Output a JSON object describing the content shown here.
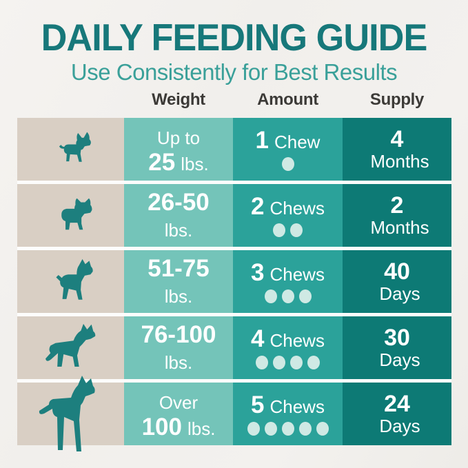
{
  "title": "DAILY FEEDING GUIDE",
  "subtitle": "Use Consistently for Best Results",
  "columns": {
    "weight": "Weight",
    "amount": "Amount",
    "supply": "Supply"
  },
  "rows": [
    {
      "dog": "chihuahua",
      "weight": {
        "l1_bold": "",
        "l1_plain": "Up to",
        "l2_bold": "25",
        "l2_plain": "lbs."
      },
      "amount": {
        "count": "1",
        "label": "Chew",
        "dots": 1
      },
      "supply": {
        "value": "4",
        "unit": "Months"
      }
    },
    {
      "dog": "french-bulldog",
      "weight": {
        "l1_bold": "26-50",
        "l1_plain": "",
        "l2_bold": "",
        "l2_plain": "lbs."
      },
      "amount": {
        "count": "2",
        "label": "Chews",
        "dots": 2
      },
      "supply": {
        "value": "2",
        "unit": "Months"
      }
    },
    {
      "dog": "boxer",
      "weight": {
        "l1_bold": "51-75",
        "l1_plain": "",
        "l2_bold": "",
        "l2_plain": "lbs."
      },
      "amount": {
        "count": "3",
        "label": "Chews",
        "dots": 3
      },
      "supply": {
        "value": "40",
        "unit": "Days"
      }
    },
    {
      "dog": "german-shepherd",
      "weight": {
        "l1_bold": "76-100",
        "l1_plain": "",
        "l2_bold": "",
        "l2_plain": "lbs."
      },
      "amount": {
        "count": "4",
        "label": "Chews",
        "dots": 4
      },
      "supply": {
        "value": "30",
        "unit": "Days"
      }
    },
    {
      "dog": "great-dane",
      "weight": {
        "l1_bold": "",
        "l1_plain": "Over",
        "l2_bold": "100",
        "l2_plain": "lbs."
      },
      "amount": {
        "count": "5",
        "label": "Chews",
        "dots": 5
      },
      "supply": {
        "value": "24",
        "unit": "Days"
      }
    }
  ],
  "colors": {
    "background": "#f1efec",
    "title": "#17787a",
    "subtitle": "#3aa099",
    "header_text": "#3c3a37",
    "dog_cell_bg": "#d9cfc4",
    "weight_cell_bg": "#74c4b9",
    "amount_cell_bg": "#2ba29a",
    "supply_cell_bg": "#0d7a75",
    "dog_silhouette": "#1d7f7e",
    "chew_dot": "#cfe9e4",
    "cell_text": "#ffffff",
    "row_gap": "#fdfdfc"
  },
  "chart_data": {
    "type": "table",
    "title": "DAILY FEEDING GUIDE",
    "subtitle": "Use Consistently for Best Results",
    "columns": [
      "Weight",
      "Amount",
      "Supply"
    ],
    "rows": [
      [
        "Up to 25 lbs.",
        "1 Chew",
        "4 Months"
      ],
      [
        "26-50 lbs.",
        "2 Chews",
        "2 Months"
      ],
      [
        "51-75 lbs.",
        "3 Chews",
        "40 Days"
      ],
      [
        "76-100 lbs.",
        "4 Chews",
        "30 Days"
      ],
      [
        "Over 100 lbs.",
        "5 Chews",
        "24 Days"
      ]
    ]
  }
}
